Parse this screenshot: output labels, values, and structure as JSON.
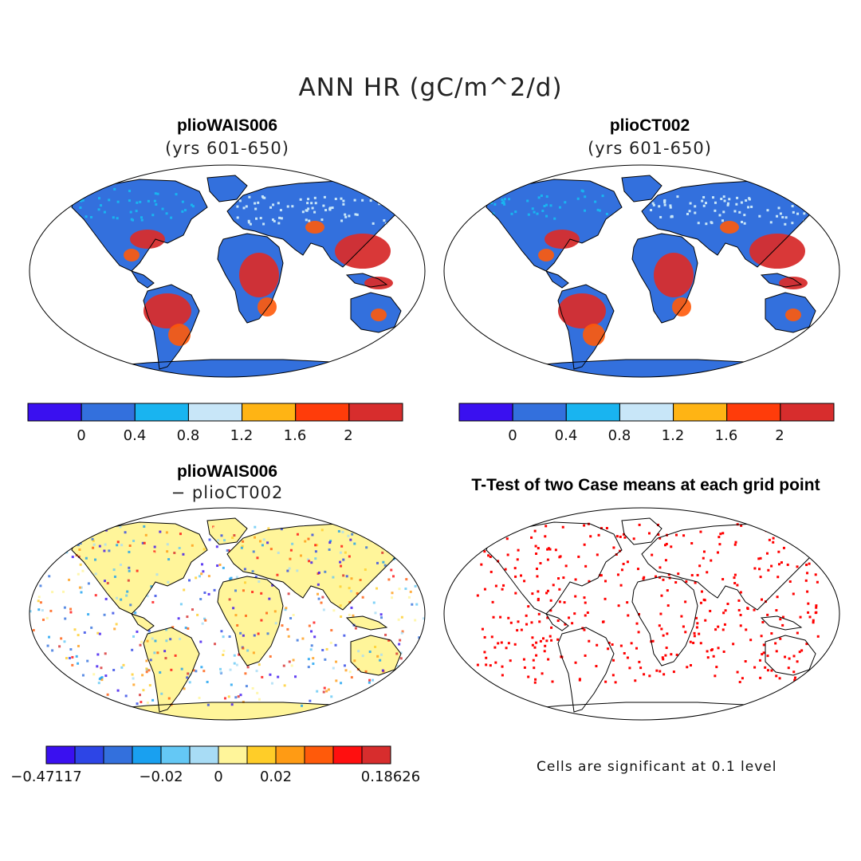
{
  "figure": {
    "title": "ANN HR (gC/m^2/d)"
  },
  "panels": [
    {
      "title": "plioWAIS006",
      "subtitle": "(yrs 601-650)"
    },
    {
      "title": "plioCT002",
      "subtitle": "(yrs 601-650)"
    },
    {
      "title": "plioWAIS006",
      "subtitle": "− plioCT002"
    },
    {
      "title": "T-Test of two Case means at each grid point"
    }
  ],
  "colorbar_top": {
    "colors": [
      "#3a10f0",
      "#3370dd",
      "#19b4f0",
      "#c8e6f8",
      "#ffb414",
      "#ff3c0a",
      "#d72d2d"
    ],
    "labels": [
      "0",
      "0.4",
      "0.8",
      "1.2",
      "1.6",
      "2"
    ]
  },
  "colorbar_diff": {
    "colors": [
      "#3a10f0",
      "#2d45e6",
      "#3370dd",
      "#19a0f0",
      "#64c8f5",
      "#a8dcf5",
      "#fff59a",
      "#ffcd28",
      "#ff9b14",
      "#ff5a0a",
      "#ff0f0f",
      "#d72d2d"
    ],
    "labels": [
      "−0.47117",
      "−0.02",
      "0",
      "0.02",
      "0.18626"
    ]
  },
  "significance_note": "Cells are significant at 0.1 level",
  "legend_colors": {
    "significant": "#ff0000",
    "ocean": "#ffffff"
  }
}
